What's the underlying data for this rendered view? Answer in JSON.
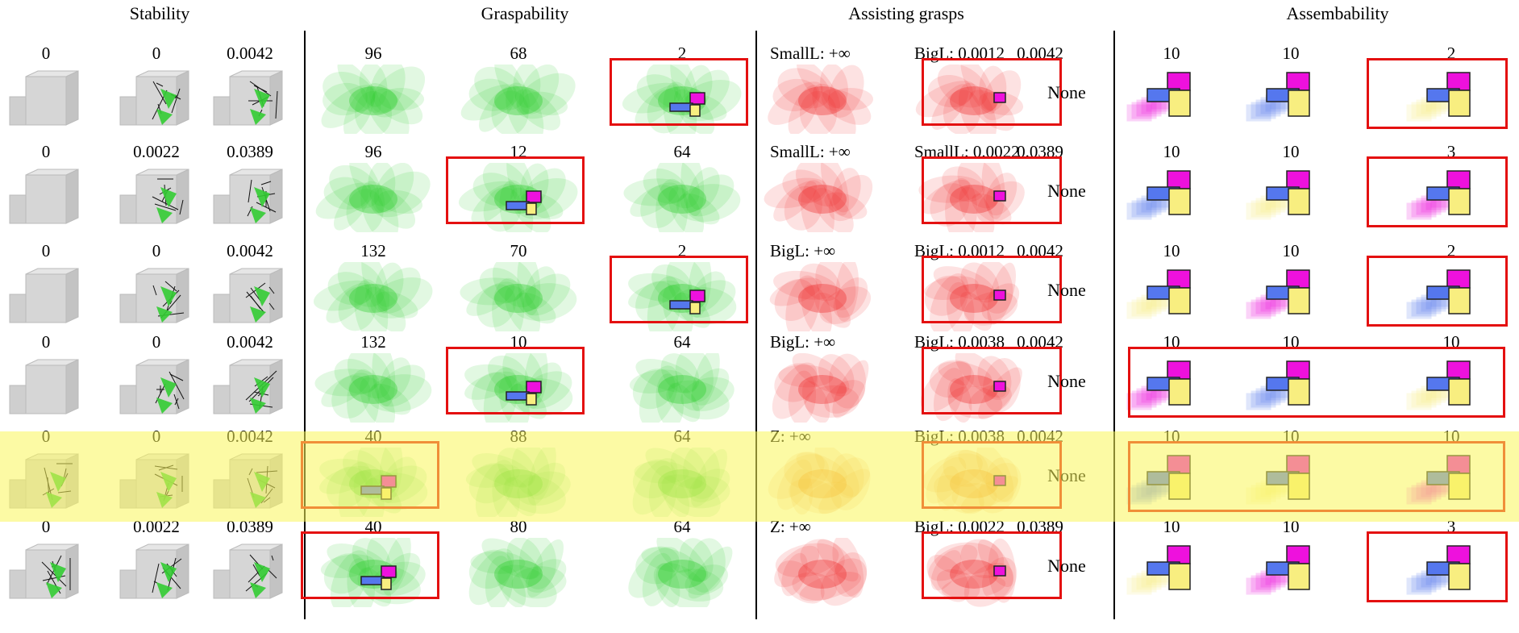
{
  "sections": {
    "stability": "Stability",
    "graspability": "Graspability",
    "assisting": "Assisting grasps",
    "assembability": "Assembability"
  },
  "colors": {
    "grasp_green": "#22cc22",
    "assist_red": "#ee2222",
    "assist_orange": "#f08010",
    "highlight": "#f9f46a",
    "box_red": "#e41010",
    "piece_magenta": "#ee11dd",
    "piece_blue": "#5577ee",
    "piece_yellow": "#f8ee80"
  },
  "rows": [
    {
      "stability": [
        "0",
        "0",
        "0.0042"
      ],
      "graspability": [
        "96",
        "68",
        "2"
      ],
      "assisting": [
        "SmallL: +∞",
        "BigL: 0.0012",
        "0.0042"
      ],
      "assisting_result": "None",
      "assembability": [
        "10",
        "10",
        "2"
      ]
    },
    {
      "stability": [
        "0",
        "0.0022",
        "0.0389"
      ],
      "graspability": [
        "96",
        "12",
        "64"
      ],
      "assisting": [
        "SmallL: +∞",
        "SmallL: 0.0022",
        "0.0389"
      ],
      "assisting_result": "None",
      "assembability": [
        "10",
        "10",
        "3"
      ]
    },
    {
      "stability": [
        "0",
        "0",
        "0.0042"
      ],
      "graspability": [
        "132",
        "70",
        "2"
      ],
      "assisting": [
        "BigL: +∞",
        "BigL: 0.0012",
        "0.0042"
      ],
      "assisting_result": "None",
      "assembability": [
        "10",
        "10",
        "2"
      ]
    },
    {
      "stability": [
        "0",
        "0",
        "0.0042"
      ],
      "graspability": [
        "132",
        "10",
        "64"
      ],
      "assisting": [
        "BigL: +∞",
        "BigL: 0.0038",
        "0.0042"
      ],
      "assisting_result": "None",
      "assembability": [
        "10",
        "10",
        "10"
      ]
    },
    {
      "stability": [
        "0",
        "0",
        "0.0042"
      ],
      "graspability": [
        "40",
        "88",
        "64"
      ],
      "assisting": [
        "Z: +∞",
        "BigL: 0.0038",
        "0.0042"
      ],
      "assisting_result": "None",
      "assembability": [
        "10",
        "10",
        "10"
      ]
    },
    {
      "stability": [
        "0",
        "0.0022",
        "0.0389"
      ],
      "graspability": [
        "40",
        "80",
        "64"
      ],
      "assisting": [
        "Z: +∞",
        "BigL: 0.0022",
        "0.0389"
      ],
      "assisting_result": "None",
      "assembability": [
        "10",
        "10",
        "3"
      ]
    }
  ]
}
